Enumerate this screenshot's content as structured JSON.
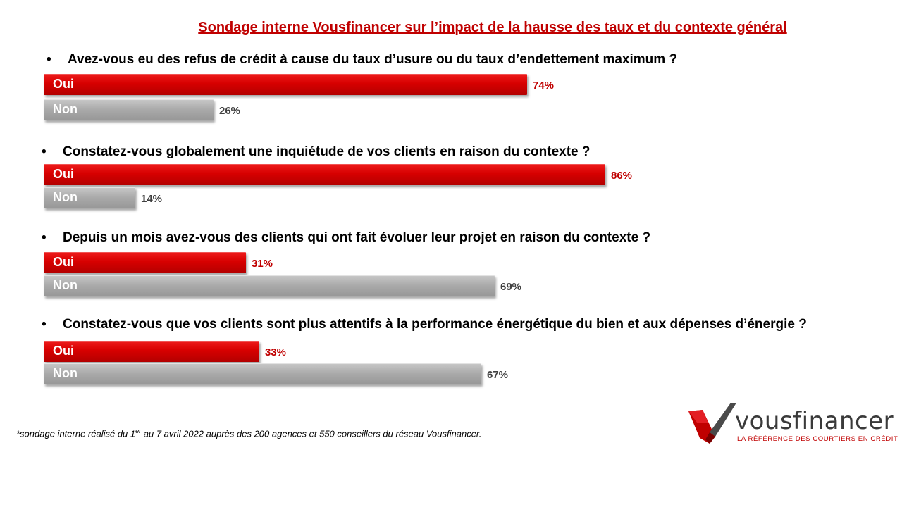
{
  "title": "Sondage interne Vousfinancer sur l’impact de la hausse des taux et du contexte général",
  "bullet": "•",
  "colors": {
    "oui": "#c00000",
    "non": "#a6a6a6"
  },
  "chart_data": {
    "type": "bar",
    "orientation": "horizontal",
    "scale_max": 100,
    "questions": [
      {
        "text": "Avez-vous eu des refus de crédit à cause du taux d’usure ou du taux d’endettement maximum ?",
        "answers": [
          {
            "label": "Oui",
            "value": 74,
            "value_label": "74%"
          },
          {
            "label": "Non",
            "value": 26,
            "value_label": "26%"
          }
        ]
      },
      {
        "text": "Constatez-vous globalement une inquiétude de vos clients en raison du contexte ?",
        "answers": [
          {
            "label": "Oui",
            "value": 86,
            "value_label": "86%"
          },
          {
            "label": "Non",
            "value": 14,
            "value_label": "14%"
          }
        ]
      },
      {
        "text": "Depuis un mois avez-vous des clients qui ont fait évoluer leur projet en raison du contexte ?",
        "answers": [
          {
            "label": "Oui",
            "value": 31,
            "value_label": "31%"
          },
          {
            "label": "Non",
            "value": 69,
            "value_label": "69%"
          }
        ]
      },
      {
        "text": "Constatez-vous que vos clients sont plus attentifs à la performance énergétique du bien et aux dépenses d’énergie ?",
        "answers": [
          {
            "label": "Oui",
            "value": 33,
            "value_label": "33%"
          },
          {
            "label": "Non",
            "value": 67,
            "value_label": "67%"
          }
        ]
      }
    ]
  },
  "footnote": {
    "before": "*sondage interne réalisé du 1",
    "sup": "er",
    "after": " au 7 avril 2022 auprès des 200 agences et 550 conseillers du réseau Vousfinancer."
  },
  "logo": {
    "name": "vousfinancer",
    "tagline": "LA RÉFÉRENCE DES COURTIERS EN CRÉDIT",
    "icon": "v-logo-icon"
  }
}
